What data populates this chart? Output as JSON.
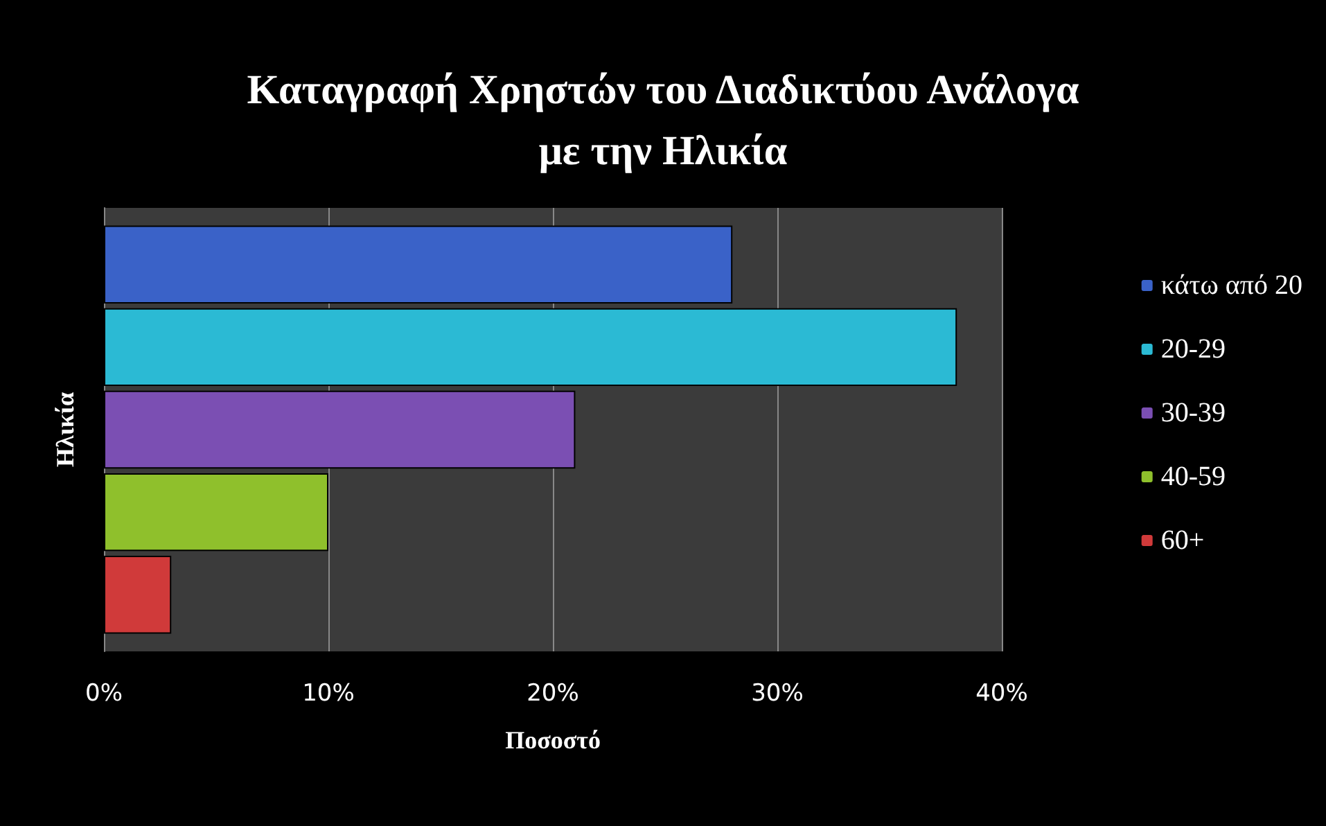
{
  "chart_data": {
    "type": "bar",
    "orientation": "horizontal",
    "title": "Καταγραφή Χρηστών του Διαδικτύου Ανάλογα\nμε την Ηλικία",
    "xlabel": "Ποσοστό",
    "ylabel": "Ηλικία",
    "categories": [
      null
    ],
    "series": [
      {
        "name": "κάτω από 20",
        "color": "#3a62c8",
        "values": [
          28
        ]
      },
      {
        "name": "20-29",
        "color": "#2bbad4",
        "values": [
          38
        ]
      },
      {
        "name": "30-39",
        "color": "#7b4fb3",
        "values": [
          21
        ]
      },
      {
        "name": "40-59",
        "color": "#8fc02c",
        "values": [
          10
        ]
      },
      {
        "name": "60+",
        "color": "#d03a3a",
        "values": [
          3
        ]
      }
    ],
    "xlim": [
      0,
      40
    ],
    "xticks": [
      {
        "value": 0,
        "label": "0%"
      },
      {
        "value": 10,
        "label": "10%"
      },
      {
        "value": 20,
        "label": "20%"
      },
      {
        "value": 30,
        "label": "30%"
      },
      {
        "value": 40,
        "label": "40%"
      }
    ],
    "grid": "x",
    "legend": "right"
  }
}
